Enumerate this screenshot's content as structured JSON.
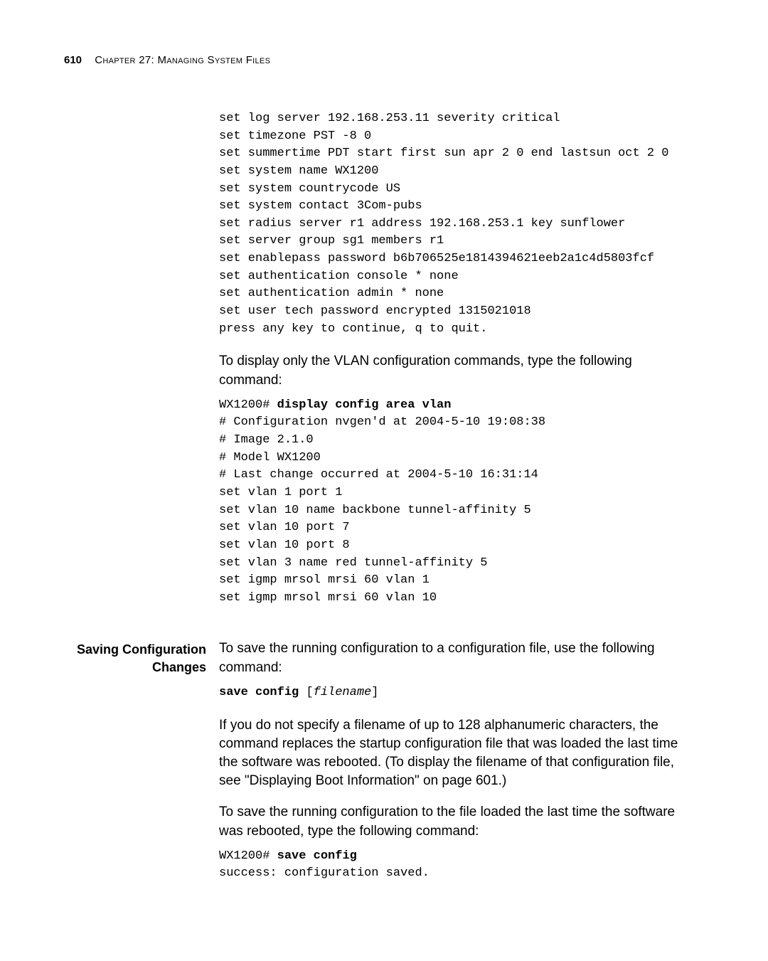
{
  "header": {
    "page_number": "610",
    "chapter_label": "Chapter 27: Managing System Files"
  },
  "block1": {
    "code_lines": [
      "set log server 192.168.253.11 severity critical",
      "set timezone PST -8 0",
      "set summertime PDT start first sun apr 2 0 end lastsun oct 2 0",
      "set system name WX1200",
      "set system countrycode US",
      "set system contact 3Com-pubs",
      "set radius server r1 address 192.168.253.1 key sunflower",
      "set server group sg1 members r1",
      "set enablepass password b6b706525e1814394621eeb2a1c4d5803fcf",
      "set authentication console * none",
      "set authentication admin * none",
      "set user tech password encrypted 1315021018",
      "press any key to continue, q to quit."
    ]
  },
  "para1": "To display only the VLAN configuration commands, type the following command:",
  "block2": {
    "prompt": "WX1200# ",
    "cmd": "display config area vlan",
    "lines_after": [
      "# Configuration nvgen'd at 2004-5-10 19:08:38",
      "# Image 2.1.0",
      "# Model WX1200",
      "# Last change occurred at 2004-5-10 16:31:14",
      "set vlan 1 port 1",
      "set vlan 10 name backbone tunnel-affinity 5",
      "set vlan 10 port 7",
      "set vlan 10 port 8",
      "set vlan 3 name red tunnel-affinity 5",
      "set igmp mrsol mrsi 60 vlan 1",
      "set igmp mrsol mrsi 60 vlan 10"
    ]
  },
  "section2": {
    "heading": "Saving Configuration Changes",
    "para_intro": "To save the running configuration to a configuration file, use the following command:",
    "syntax": {
      "bold": "save config ",
      "plain_open": "[",
      "italic": "filename",
      "plain_close": "]"
    },
    "para_body": "If you do not specify a filename of up to 128 alphanumeric characters, the command replaces the startup configuration file that was loaded the last time the software was rebooted. (To display the filename of that configuration file, see \"Displaying Boot Information\" on page 601.)",
    "para_next": "To save the running configuration to the file loaded the last time the software was rebooted, type the following command:",
    "example": {
      "prompt": "WX1200# ",
      "cmd": "save config",
      "result": "success: configuration saved."
    }
  }
}
